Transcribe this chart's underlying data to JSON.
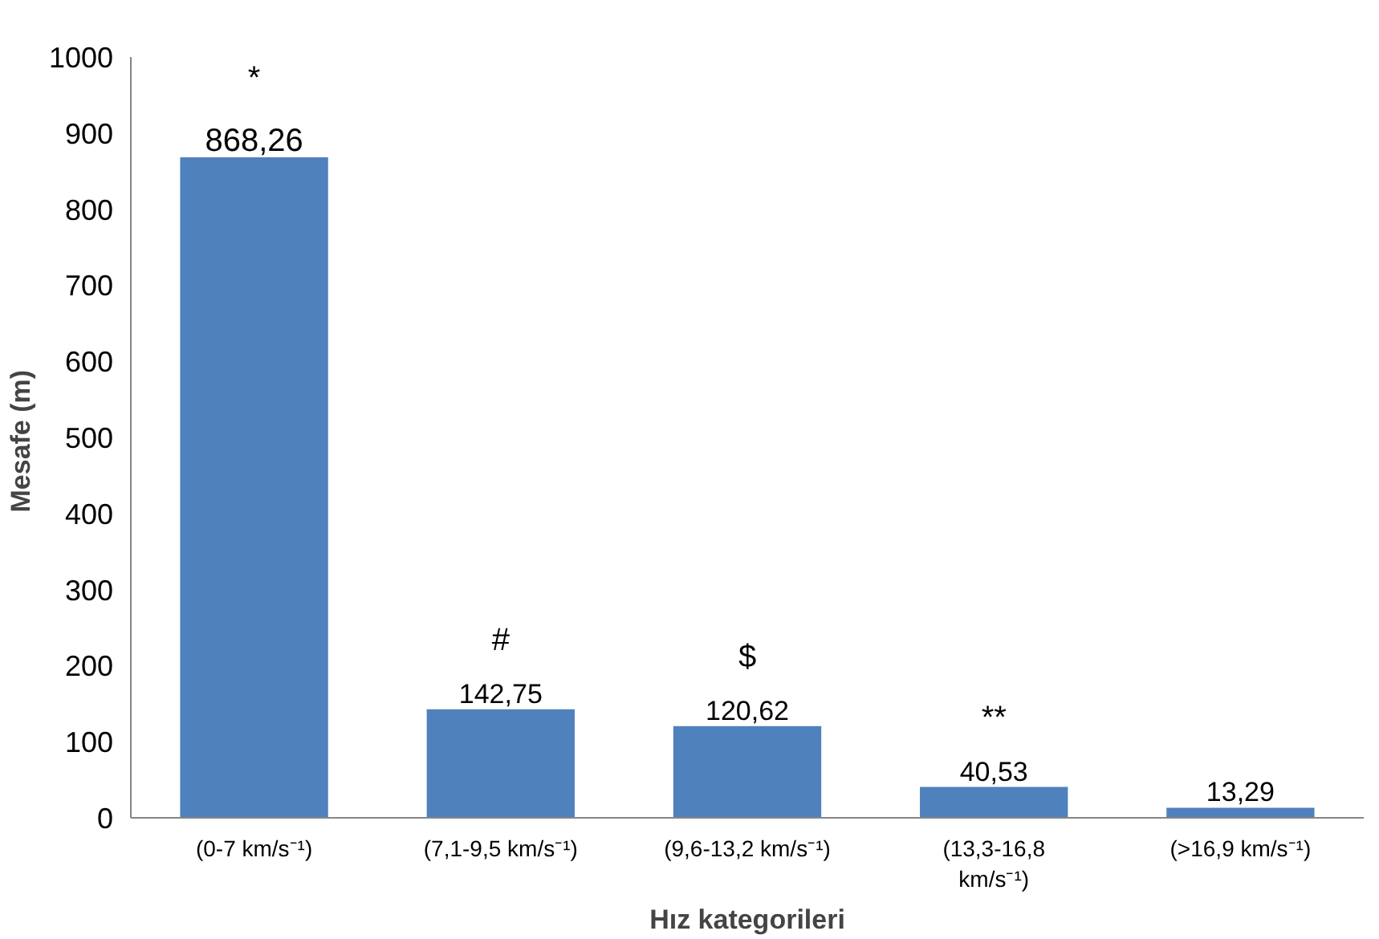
{
  "chart_data": {
    "type": "bar",
    "xlabel": "Hız kategorileri",
    "ylabel": "Mesafe  (m)",
    "categories": [
      "(0-7 km/s⁻¹)",
      "(7,1-9,5 km/s⁻¹)",
      "(9,6-13,2 km/s⁻¹)",
      "(13,3-16,8 km/s⁻¹)",
      "(>16,9 km/s⁻¹)"
    ],
    "values": [
      868.26,
      142.75,
      120.62,
      40.53,
      13.29
    ],
    "value_labels": [
      "868,26",
      "142,75",
      "120,62",
      "40,53",
      "13,29"
    ],
    "color": "#4f81bd",
    "ylim": [
      0,
      1000
    ],
    "yticks": [
      0,
      100,
      200,
      300,
      400,
      500,
      600,
      700,
      800,
      900,
      1000
    ],
    "grid": false,
    "annotations": [
      "*",
      "#",
      "$",
      "**"
    ]
  }
}
